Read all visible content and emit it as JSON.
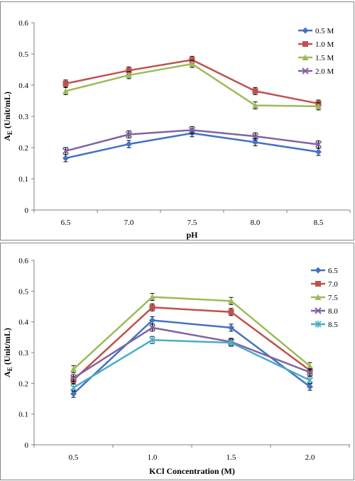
{
  "chart_data": [
    {
      "type": "line",
      "xlabel": "pH",
      "ylabel": "AE (Unit/mL)",
      "x": [
        6.5,
        7.0,
        7.5,
        8.0,
        8.5
      ],
      "x_tick_labels": [
        "6.5",
        "7.0",
        "7.5",
        "8.0",
        "8.5"
      ],
      "y_tick_labels": [
        "0",
        "0.1",
        "0.2",
        "0.3",
        "0.4",
        "0.5",
        "0.6"
      ],
      "ylim": [
        0,
        0.6
      ],
      "grid": false,
      "legend_position": "top-right",
      "series": [
        {
          "name": "0.5 M",
          "color": "#4472C4",
          "marker": "diamond",
          "values": [
            0.166,
            0.211,
            0.246,
            0.217,
            0.186
          ]
        },
        {
          "name": "1.0 M",
          "color": "#C0504D",
          "marker": "square",
          "values": [
            0.405,
            0.447,
            0.481,
            0.381,
            0.341
          ]
        },
        {
          "name": "1.5 M",
          "color": "#9BBB59",
          "marker": "triangle",
          "values": [
            0.381,
            0.432,
            0.468,
            0.335,
            0.332
          ]
        },
        {
          "name": "2.0 M",
          "color": "#8064A2",
          "marker": "x",
          "values": [
            0.189,
            0.242,
            0.256,
            0.236,
            0.21
          ]
        }
      ]
    },
    {
      "type": "line",
      "xlabel": "KCl Concentration (M)",
      "ylabel": "AE (Unit/mL)",
      "x": [
        0.5,
        1.0,
        1.5,
        2.0
      ],
      "x_tick_labels": [
        "0.5",
        "1.0",
        "1.5",
        "2.0"
      ],
      "y_tick_labels": [
        "0",
        "0.1",
        "0.2",
        "0.3",
        "0.4",
        "0.5",
        "0.6"
      ],
      "ylim": [
        0,
        0.6
      ],
      "grid": false,
      "legend_position": "top-right",
      "series": [
        {
          "name": "6.5",
          "color": "#4472C4",
          "marker": "diamond",
          "values": [
            0.166,
            0.405,
            0.381,
            0.189
          ]
        },
        {
          "name": "7.0",
          "color": "#C0504D",
          "marker": "square",
          "values": [
            0.211,
            0.447,
            0.432,
            0.242
          ]
        },
        {
          "name": "7.5",
          "color": "#9BBB59",
          "marker": "triangle",
          "values": [
            0.246,
            0.481,
            0.468,
            0.256
          ]
        },
        {
          "name": "8.0",
          "color": "#8064A2",
          "marker": "x",
          "values": [
            0.217,
            0.381,
            0.335,
            0.236
          ]
        },
        {
          "name": "8.5",
          "color": "#4BACC6",
          "marker": "star",
          "values": [
            0.186,
            0.341,
            0.332,
            0.21
          ]
        }
      ]
    }
  ]
}
